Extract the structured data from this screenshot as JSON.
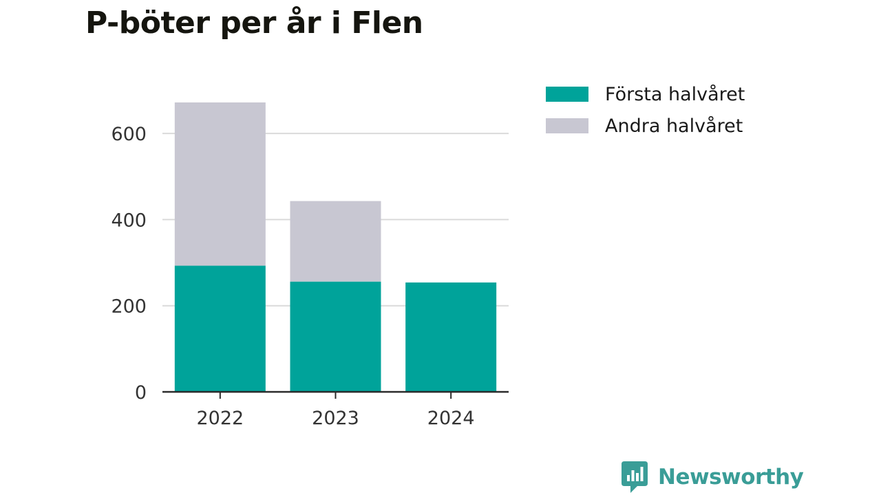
{
  "title": "P-böter per år i Flen",
  "colors": {
    "first_half": "#00a39a",
    "second_half": "#c8c7d2",
    "grid": "#dadada",
    "axis": "#2b2b2b",
    "brand": "#3a9d97"
  },
  "legend": {
    "items": [
      {
        "label": "Första halvåret",
        "color_key": "first_half"
      },
      {
        "label": "Andra halvåret",
        "color_key": "second_half"
      }
    ]
  },
  "brand": {
    "name": "Newsworthy",
    "icon": "newsworthy-logo-icon"
  },
  "chart_data": {
    "type": "bar",
    "stacked": true,
    "categories": [
      "2022",
      "2023",
      "2024"
    ],
    "series": [
      {
        "name": "Första halvåret",
        "values": [
          293,
          256,
          254
        ]
      },
      {
        "name": "Andra halvåret",
        "values": [
          379,
          187,
          0
        ]
      }
    ],
    "ylim": [
      0,
      672
    ],
    "yticks": [
      0,
      200,
      400,
      600
    ],
    "grid": true,
    "legend_position": "top-right"
  }
}
